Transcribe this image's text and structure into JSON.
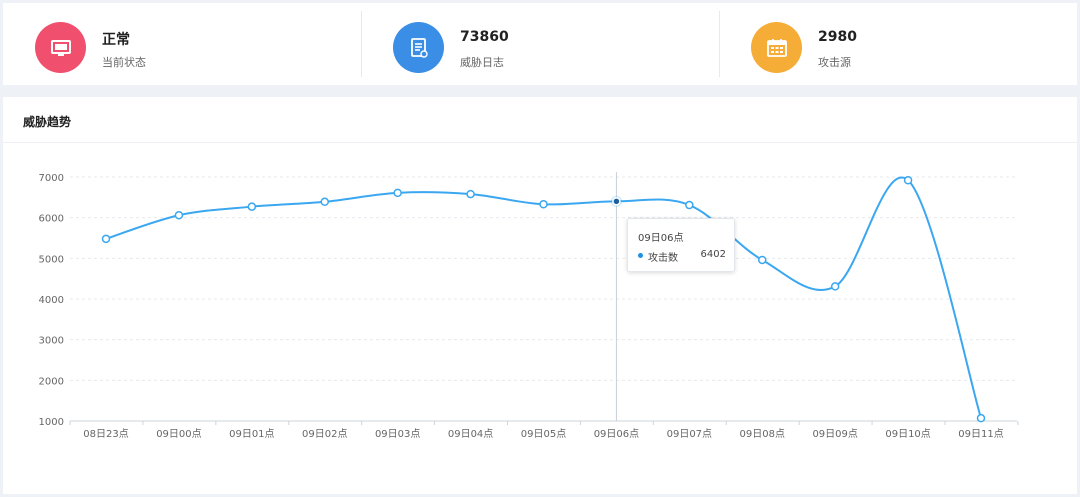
{
  "stats": [
    {
      "value": "正常",
      "label": "当前状态",
      "icon": "monitor-icon",
      "color": "#f0506e"
    },
    {
      "value": "73860",
      "label": "威胁日志",
      "icon": "document-icon",
      "color": "#3a8ee6"
    },
    {
      "value": "2980",
      "label": "攻击源",
      "icon": "calendar-icon",
      "color": "#f6ad37"
    }
  ],
  "panel": {
    "title": "威胁趋势"
  },
  "tooltip": {
    "title": "09日06点",
    "series": "攻击数",
    "value": "6402"
  },
  "chart_data": {
    "type": "line",
    "title": "威胁趋势",
    "categories": [
      "08日23点",
      "09日00点",
      "09日01点",
      "09日02点",
      "09日03点",
      "09日04点",
      "09日05点",
      "09日06点",
      "09日07点",
      "09日08点",
      "09日09点",
      "09日10点",
      "09日11点"
    ],
    "series": [
      {
        "name": "攻击数",
        "color": "#3aa7f0",
        "values": [
          5480,
          6060,
          6270,
          6390,
          6610,
          6580,
          6330,
          6402,
          6310,
          4960,
          4310,
          6920,
          1070
        ]
      }
    ],
    "ylim": [
      1000,
      7000
    ],
    "yticks": [
      1000,
      2000,
      3000,
      4000,
      5000,
      6000,
      7000
    ],
    "grid": true,
    "highlight_index": 7
  }
}
